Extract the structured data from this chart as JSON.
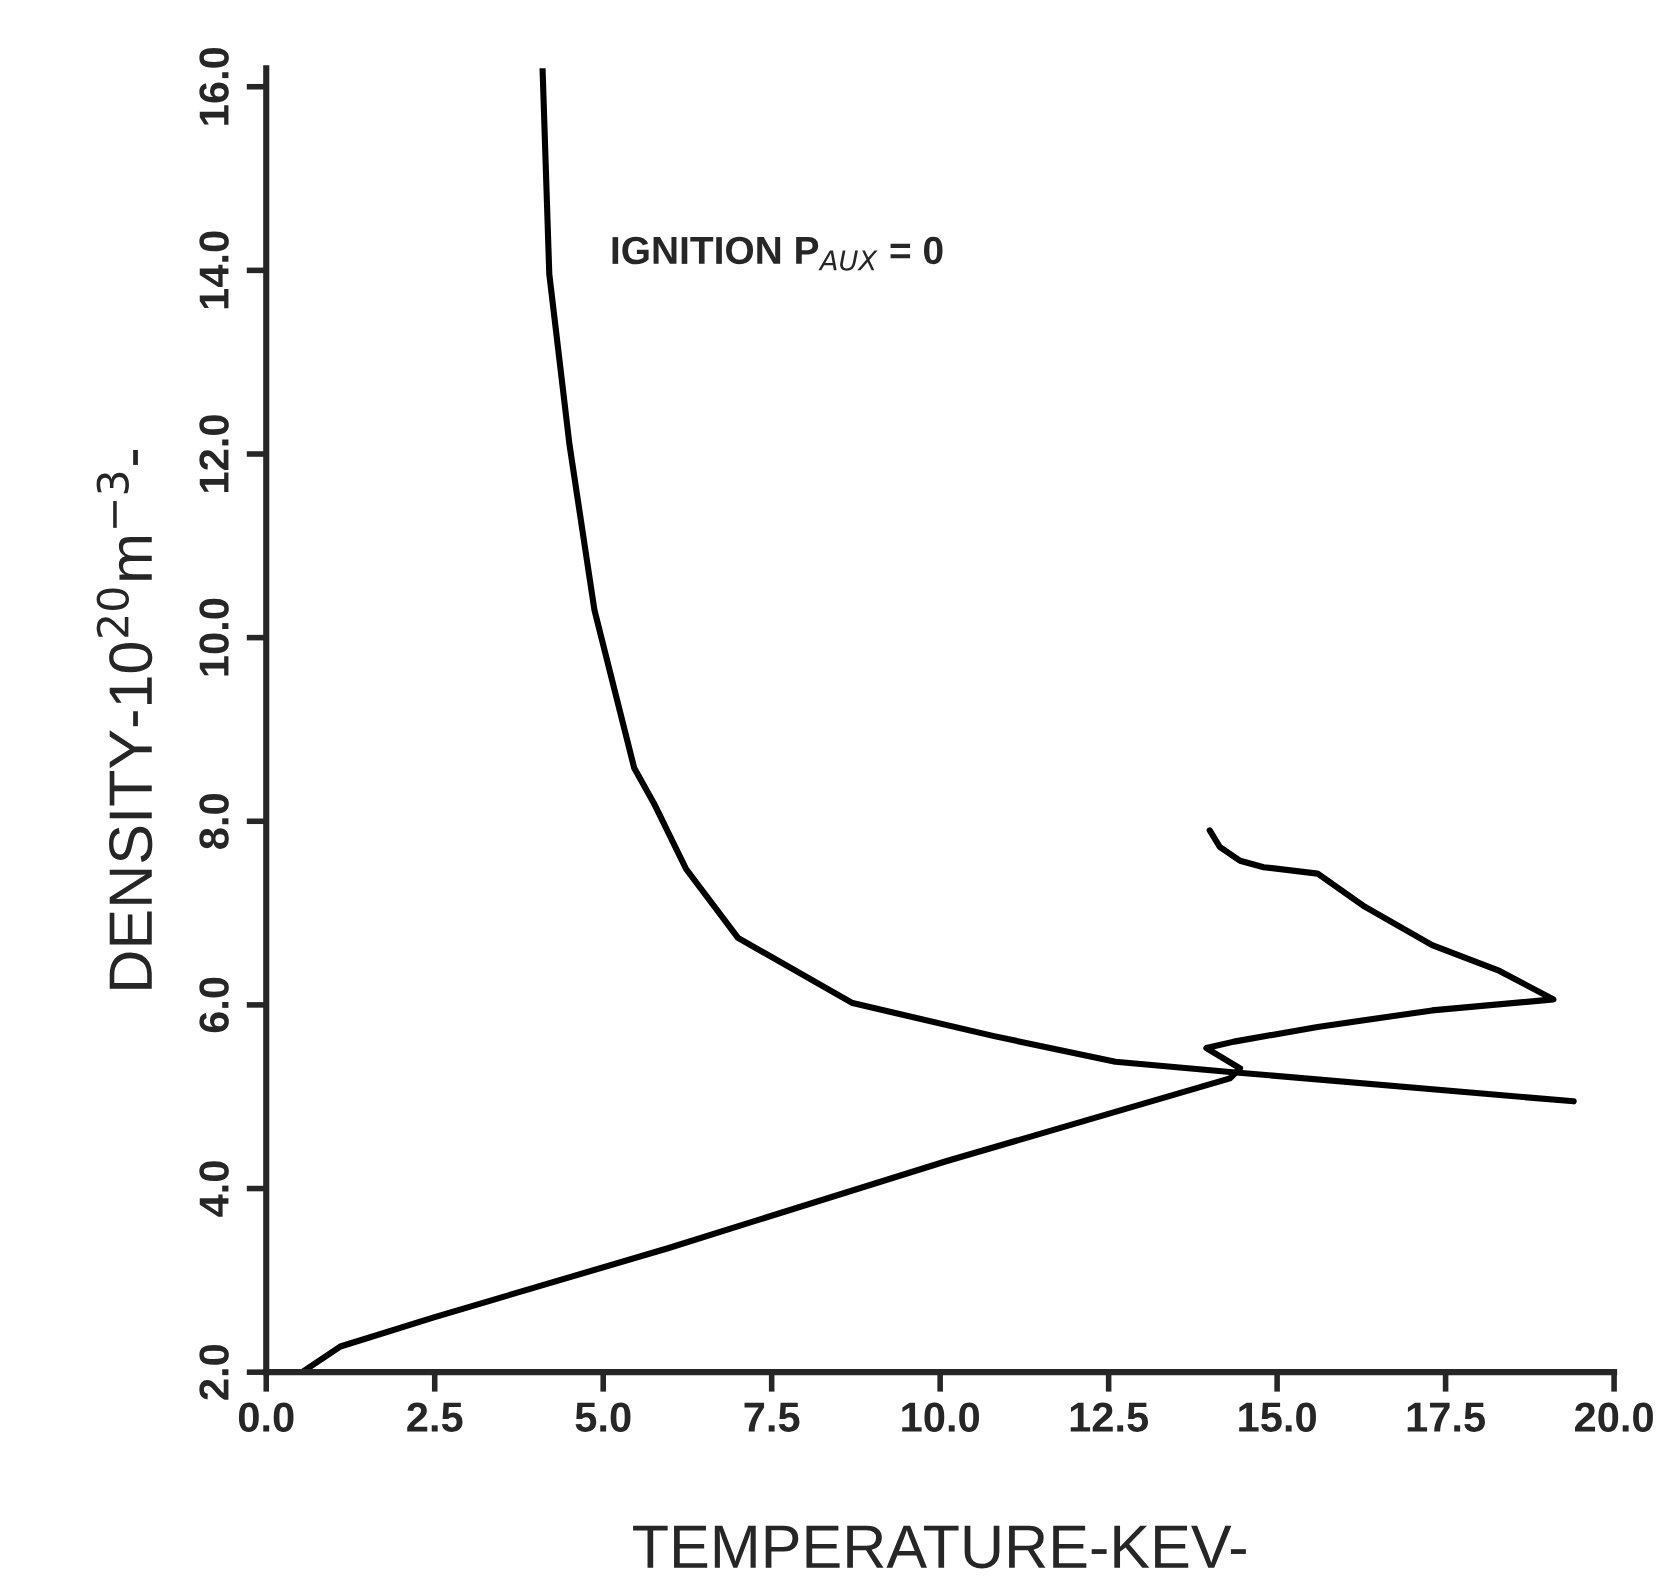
{
  "chart_data": {
    "type": "line",
    "xlabel": "TEMPERATURE-KEV-",
    "ylabel": "DENSITY-10$^{20}$m$^{−3}$-",
    "annotations": [
      "IGNITION P$_{AUX}$ = 0"
    ],
    "series": [
      {
        "color": "#000000",
        "x": [
          4.1,
          4.2,
          4.5,
          4.87,
          5.46,
          5.75,
          6.23,
          7.0,
          8.7,
          10.8,
          12.6,
          14.3,
          19.4
        ],
        "values": [
          16.2,
          13.96,
          12.1,
          10.3,
          8.58,
          8.2,
          7.48,
          6.73,
          6.02,
          5.66,
          5.38,
          5.27,
          4.95
        ]
      },
      {
        "color": "#000000",
        "x": [
          0.53,
          1.1,
          2.5,
          5.96,
          10.1,
          14.3,
          14.45,
          13.95,
          14.36,
          15.6,
          17.3,
          19.1,
          18.3,
          17.3,
          16.3,
          15.6,
          14.8,
          14.45,
          14.15,
          14.0
        ],
        "values": [
          2.0,
          2.28,
          2.6,
          3.35,
          4.3,
          5.2,
          5.31,
          5.53,
          5.6,
          5.76,
          5.94,
          6.06,
          6.37,
          6.65,
          7.07,
          7.43,
          7.5,
          7.57,
          7.72,
          7.9
        ]
      }
    ],
    "xlim": [
      0,
      20
    ],
    "ylim": [
      2,
      16.2
    ],
    "xticks": [
      {
        "value": 0,
        "label": "0.0"
      },
      {
        "value": 2.5,
        "label": "2.5"
      },
      {
        "value": 5,
        "label": "5.0"
      },
      {
        "value": 7.5,
        "label": "7.5"
      },
      {
        "value": 10,
        "label": "10.0"
      },
      {
        "value": 12.5,
        "label": "12.5"
      },
      {
        "value": 15,
        "label": "15.0"
      },
      {
        "value": 17.5,
        "label": "17.5"
      },
      {
        "value": 20,
        "label": "20.0"
      }
    ],
    "yticks": [
      {
        "value": 2,
        "label": "2.0"
      },
      {
        "value": 4,
        "label": "4.0"
      },
      {
        "value": 6,
        "label": "6.0"
      },
      {
        "value": 8,
        "label": "8.0"
      },
      {
        "value": 10,
        "label": "10.0"
      },
      {
        "value": 12,
        "label": "12.0"
      },
      {
        "value": 14,
        "label": "14.0"
      },
      {
        "value": 16,
        "label": "16.0"
      }
    ],
    "grid": false,
    "legend": false,
    "line_style": "solid",
    "marker": "none"
  }
}
